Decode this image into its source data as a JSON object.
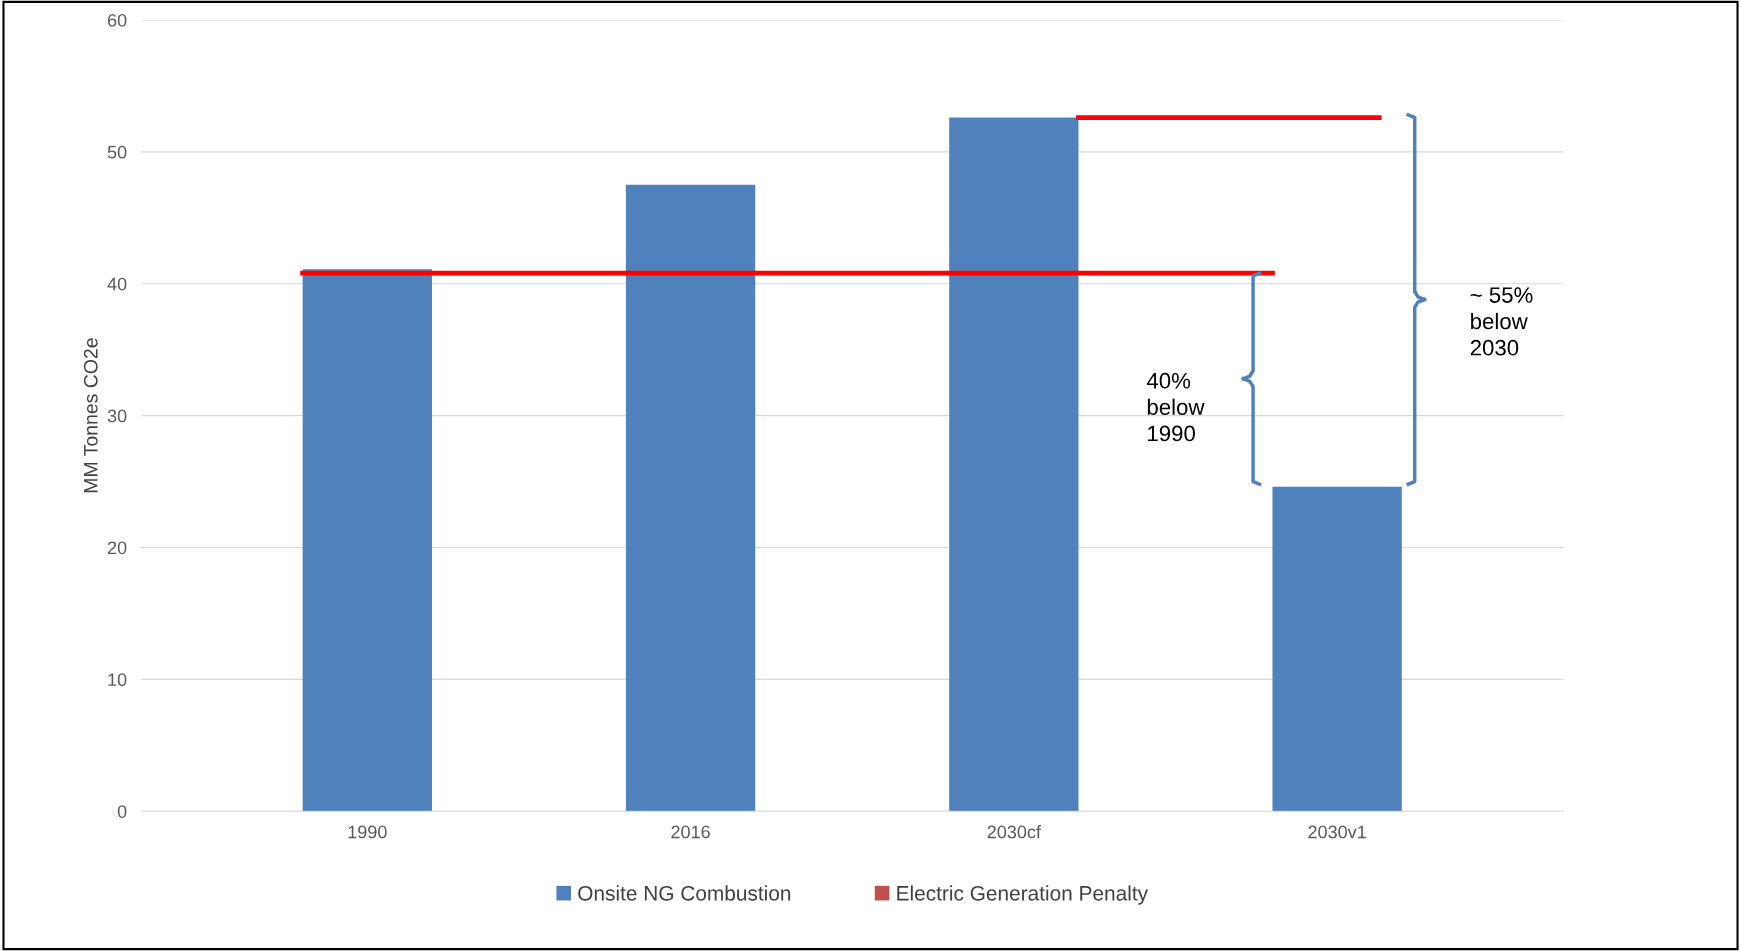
{
  "chart_data": {
    "type": "bar",
    "ylabel": "MM Tonnes CO2e",
    "categories": [
      "1990",
      "2016",
      "2030cf",
      "2030v1"
    ],
    "ref_lines": [
      {
        "axis": "y",
        "value": 40.8,
        "color": "#ff0000"
      },
      {
        "axis": "y",
        "value": 52.6,
        "color": "#ff0000"
      }
    ],
    "series": [
      {
        "name": "Onsite NG Combustion",
        "color": "#4f81bd",
        "values": [
          41.1,
          47.5,
          52.6,
          24.6
        ]
      },
      {
        "name": "Electric Generation Penalty",
        "color": "#c0504d",
        "values": [
          0,
          0,
          0,
          0
        ]
      }
    ],
    "ylim": [
      0,
      60
    ],
    "yticks": [
      0,
      10,
      20,
      30,
      40,
      50,
      60
    ],
    "grid": "y",
    "legend": "bottom",
    "annotations": [
      "40%\nbelow\n1990",
      "~ 55%\nbelow\n2030"
    ]
  }
}
